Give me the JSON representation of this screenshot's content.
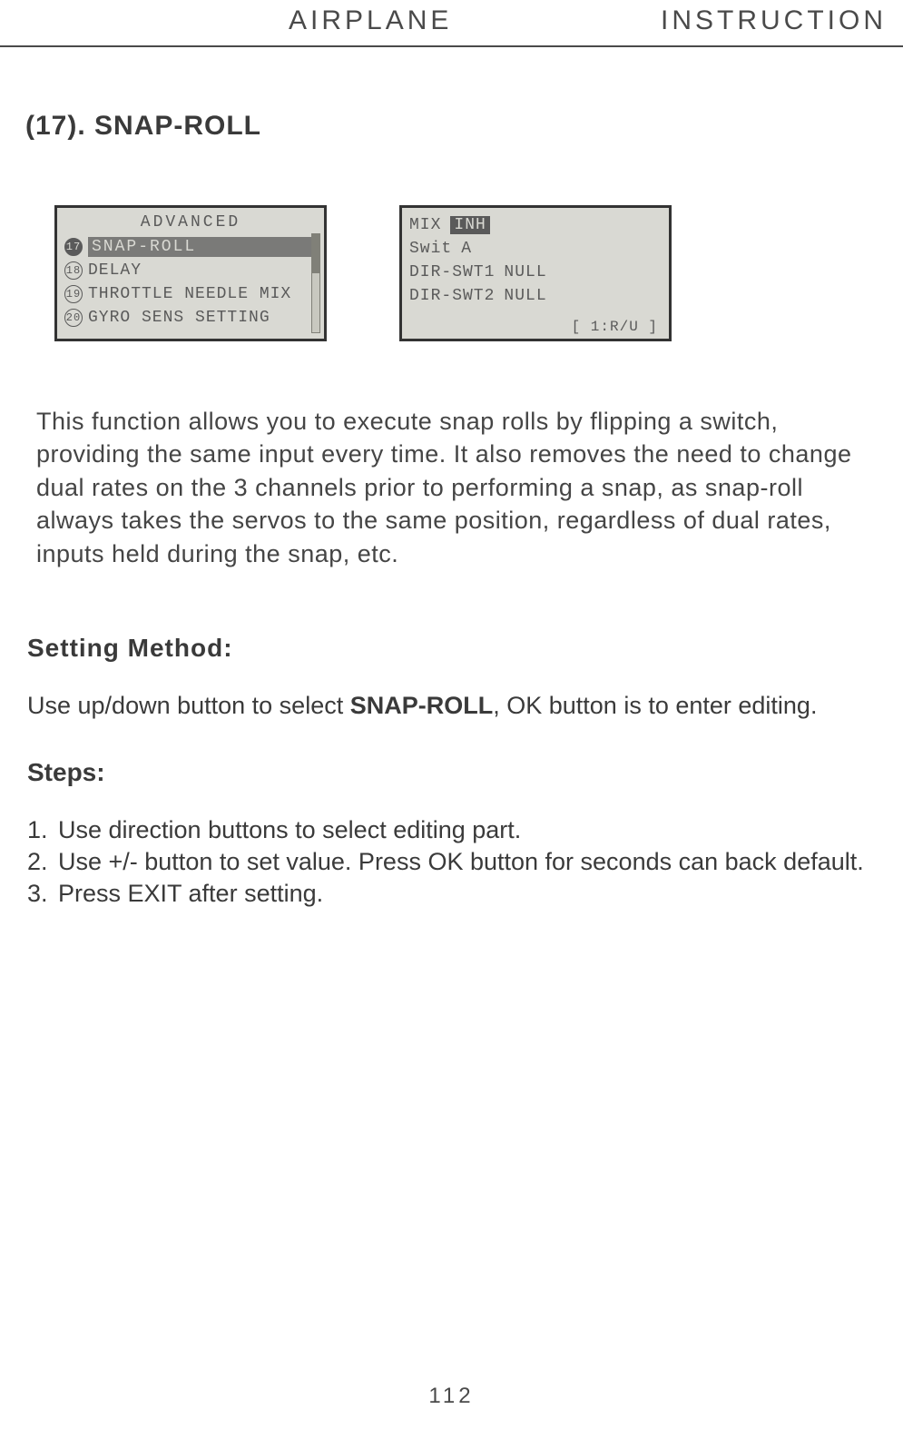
{
  "header": {
    "left": "AIRPLANE",
    "right": "INSTRUCTION"
  },
  "section": {
    "title": "(17). SNAP-ROLL"
  },
  "lcd_left": {
    "title": "ADVANCED",
    "items": [
      {
        "num": "17",
        "label": "SNAP-ROLL",
        "selected": true
      },
      {
        "num": "18",
        "label": "DELAY",
        "selected": false
      },
      {
        "num": "19",
        "label": "THROTTLE NEEDLE MIX",
        "selected": false
      },
      {
        "num": "20",
        "label": "GYRO SENS SETTING",
        "selected": false
      }
    ]
  },
  "lcd_right": {
    "rows": [
      {
        "k": "MIX",
        "v": "INH",
        "v_inverted": true
      },
      {
        "k": "Swit",
        "v": "A"
      },
      {
        "k": "DIR-SWT1",
        "v": "NULL"
      },
      {
        "k": "DIR-SWT2",
        "v": "NULL"
      }
    ],
    "footer": "[ 1:R/U ]"
  },
  "description": "This function allows you to execute snap rolls by flipping a switch, providing the same input every time. It also removes the need to change dual rates on the 3 channels prior to performing a snap, as snap-roll always takes the servos to the same position, regardless of dual rates, inputs held during the snap, etc.",
  "setting_method_label": "Setting Method:",
  "setting_method_text_pre": "Use up/down button to select ",
  "setting_method_bold": "SNAP-ROLL",
  "setting_method_text_post": ", OK button is to enter editing.",
  "steps_label": "Steps:",
  "steps": [
    "Use direction buttons to select editing part.",
    "Use +/- button to set value. Press OK button for seconds can back default.",
    "Press EXIT after setting."
  ],
  "page_number": "112"
}
